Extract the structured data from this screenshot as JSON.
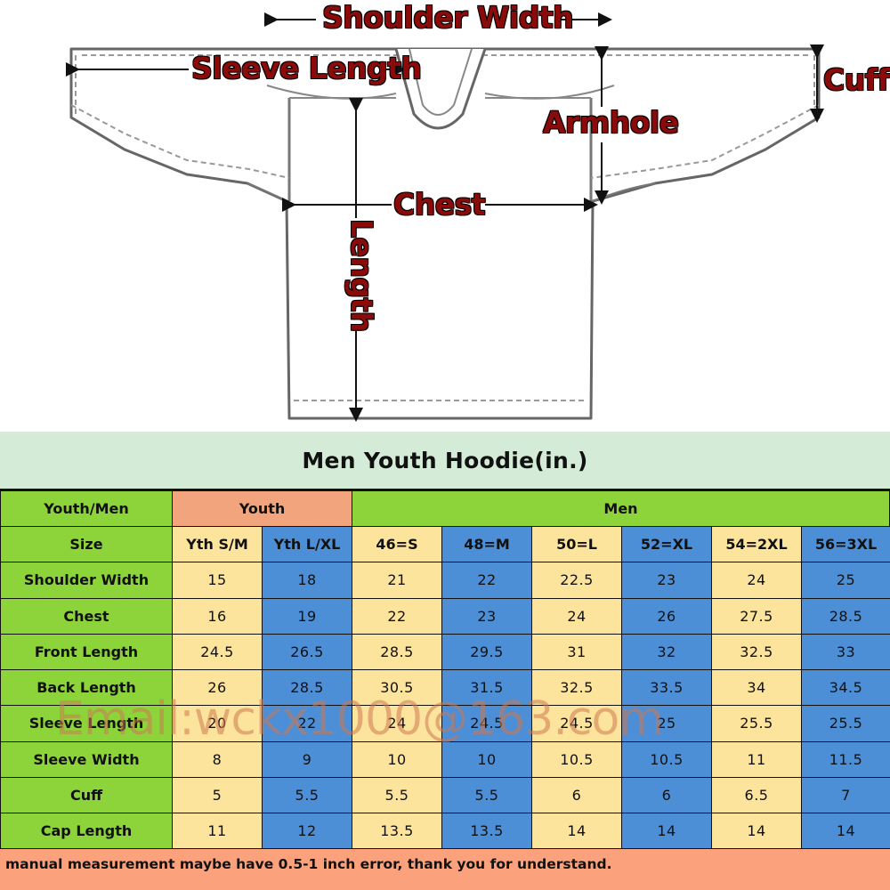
{
  "diagram": {
    "labels": {
      "shoulder_width": "Shoulder Width",
      "sleeve_length": "Sleeve Length",
      "cuff": "Cuff",
      "armhole": "Armhole",
      "chest": "Chest",
      "length": "Length"
    }
  },
  "table": {
    "title": "Men Youth Hoodie(in.)",
    "group_header": {
      "label": "Youth/Men",
      "youth": "Youth",
      "men": "Men"
    },
    "size_row": {
      "label": "Size",
      "sizes": [
        "Yth S/M",
        "Yth L/XL",
        "46=S",
        "48=M",
        "50=L",
        "52=XL",
        "54=2XL",
        "56=3XL"
      ]
    },
    "rows": [
      {
        "label": "Shoulder Width",
        "values": [
          "15",
          "18",
          "21",
          "22",
          "22.5",
          "23",
          "24",
          "25"
        ]
      },
      {
        "label": "Chest",
        "values": [
          "16",
          "19",
          "22",
          "23",
          "24",
          "26",
          "27.5",
          "28.5"
        ]
      },
      {
        "label": "Front Length",
        "values": [
          "24.5",
          "26.5",
          "28.5",
          "29.5",
          "31",
          "32",
          "32.5",
          "33"
        ]
      },
      {
        "label": "Back Length",
        "values": [
          "26",
          "28.5",
          "30.5",
          "31.5",
          "32.5",
          "33.5",
          "34",
          "34.5"
        ]
      },
      {
        "label": "Sleeve Length",
        "values": [
          "20",
          "22",
          "24",
          "24.5",
          "24.5",
          "25",
          "25.5",
          "25.5"
        ]
      },
      {
        "label": "Sleeve Width",
        "values": [
          "8",
          "9",
          "10",
          "10",
          "10.5",
          "10.5",
          "11",
          "11.5"
        ]
      },
      {
        "label": "Cuff",
        "values": [
          "5",
          "5.5",
          "5.5",
          "5.5",
          "6",
          "6",
          "6.5",
          "7"
        ]
      },
      {
        "label": "Cap Length",
        "values": [
          "11",
          "12",
          "13.5",
          "13.5",
          "14",
          "14",
          "14",
          "14"
        ]
      }
    ],
    "footer_note": "manual measurement maybe have 0.5-1 inch error, thank you for understand."
  },
  "watermark": "Email:wckx1000@163.com",
  "colors": {
    "label_green": "#8cd43a",
    "youth_orange": "#f2a57c",
    "cell_yellow": "#fde49c",
    "cell_blue": "#4c8fd6",
    "title_bg": "#d4ecd7",
    "footer_bg": "#fba17b",
    "dimension_text": "#8b0a0a"
  }
}
